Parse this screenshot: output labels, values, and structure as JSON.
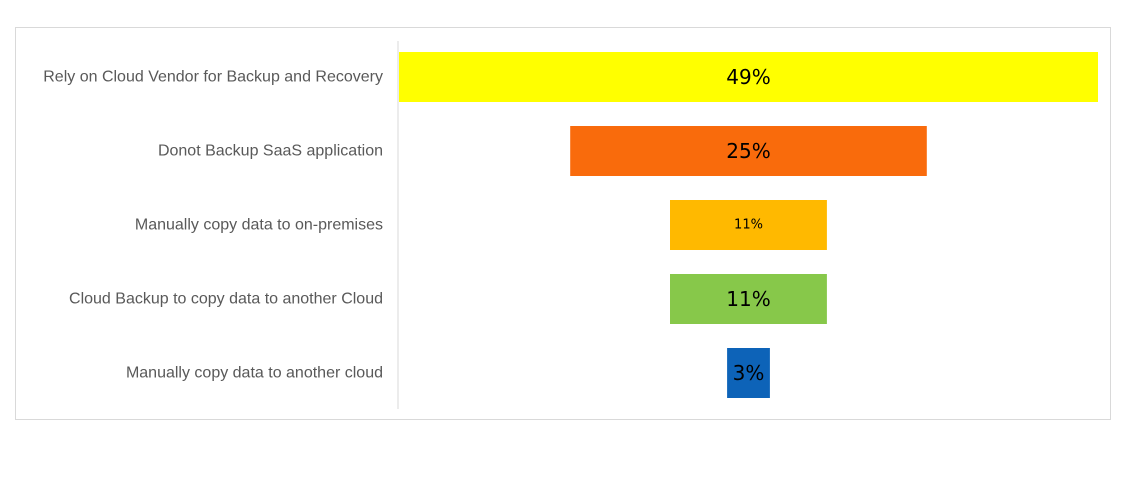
{
  "chart_data": {
    "type": "bar",
    "subtype": "funnel",
    "title": "",
    "xlabel": "",
    "ylabel": "",
    "categories": [
      "Rely on Cloud Vendor for Backup and Recovery",
      "Donot Backup SaaS application",
      "Manually copy data to on-premises",
      "Cloud Backup to copy data to another Cloud",
      "Manually copy data to another cloud"
    ],
    "values": [
      49,
      25,
      11,
      11,
      3
    ],
    "data_labels": [
      "49%",
      "25%",
      "11%",
      "11%",
      "3%"
    ],
    "colors": [
      "#ffff00",
      "#f96b0c",
      "#ffb900",
      "#87c84a",
      "#0d63b8"
    ],
    "legend": "none",
    "grid": false
  }
}
